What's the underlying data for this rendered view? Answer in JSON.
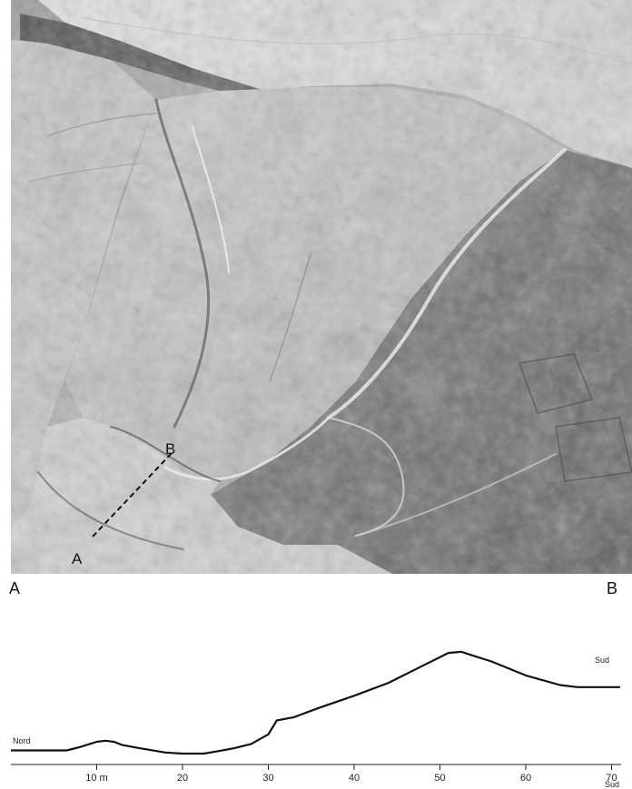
{
  "map": {
    "point_a": "A",
    "point_b": "B"
  },
  "profile": {
    "start_label": "A",
    "end_label": "B",
    "left_direction": "Nord",
    "right_direction": "Sud",
    "axis_end_sub": "Sud",
    "ticks": [
      "10 m",
      "20",
      "30",
      "40",
      "50",
      "60",
      "70"
    ]
  },
  "chart_data": {
    "type": "line",
    "x_ticks": [
      10,
      20,
      30,
      40,
      50,
      60,
      70
    ],
    "xlim": [
      0,
      71
    ],
    "ylim": [
      0,
      100
    ],
    "series": [
      {
        "x": [
          0,
          6.5,
          8,
          10,
          11,
          12,
          13,
          15,
          18,
          20,
          22.5,
          24,
          26,
          28,
          30,
          31,
          33,
          36,
          40,
          44,
          48,
          51,
          52.5,
          54,
          56,
          60,
          64,
          66,
          68,
          71
        ],
        "y": [
          3,
          3,
          6,
          11,
          12,
          11,
          8,
          5,
          1,
          0,
          0,
          2,
          5,
          9,
          18,
          31,
          34,
          43,
          54,
          66,
          82,
          94,
          95,
          91,
          86,
          73,
          64,
          62,
          62,
          62
        ]
      }
    ]
  }
}
